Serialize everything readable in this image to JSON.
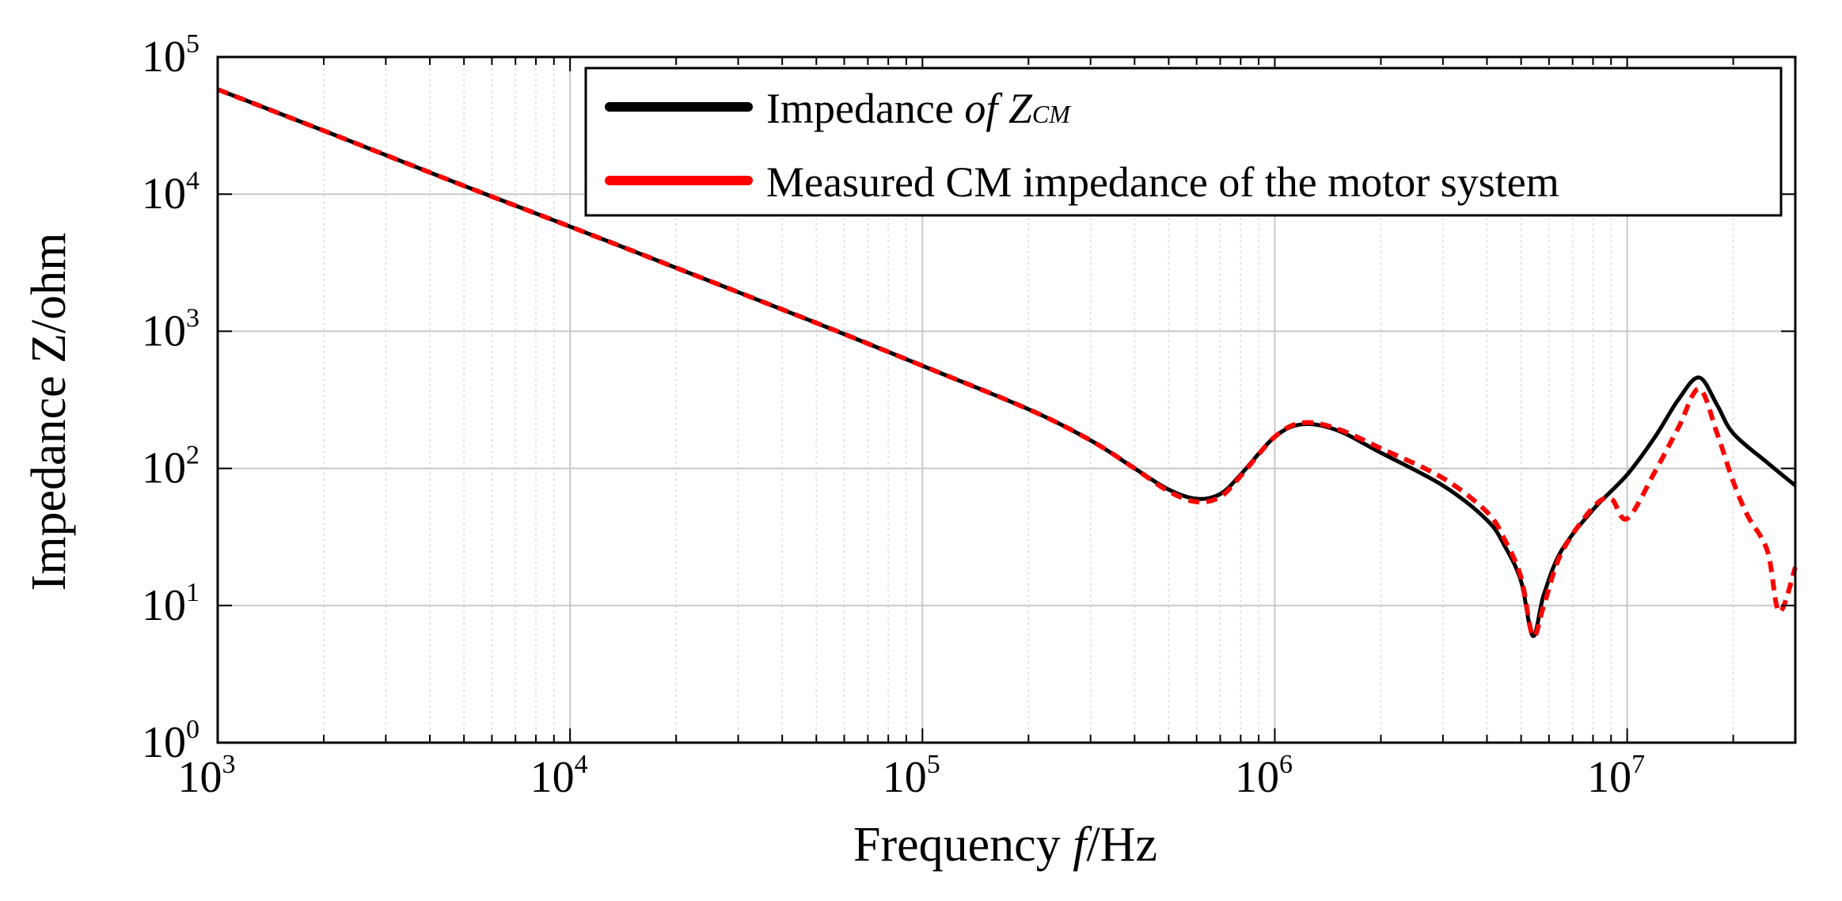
{
  "chart_data": {
    "type": "line",
    "title": "",
    "xlabel": "Frequency f/Hz",
    "xlabel_prefix": "Frequency ",
    "xlabel_var": "f",
    "xlabel_unit": "/Hz",
    "ylabel": "Impedance Z/ohm",
    "x_scale": "log",
    "y_scale": "log",
    "xlim": [
      1000,
      30000000
    ],
    "ylim": [
      1,
      100000
    ],
    "x_ticks": [
      {
        "base": "10",
        "exp": "3",
        "value": 1000
      },
      {
        "base": "10",
        "exp": "4",
        "value": 10000
      },
      {
        "base": "10",
        "exp": "5",
        "value": 100000
      },
      {
        "base": "10",
        "exp": "6",
        "value": 1000000
      },
      {
        "base": "10",
        "exp": "7",
        "value": 10000000
      }
    ],
    "y_ticks": [
      {
        "base": "10",
        "exp": "0",
        "value": 1
      },
      {
        "base": "10",
        "exp": "1",
        "value": 10
      },
      {
        "base": "10",
        "exp": "2",
        "value": 100
      },
      {
        "base": "10",
        "exp": "3",
        "value": 1000
      },
      {
        "base": "10",
        "exp": "4",
        "value": 10000
      },
      {
        "base": "10",
        "exp": "5",
        "value": 100000
      }
    ],
    "grid": true,
    "legend_position": "top-right",
    "series": [
      {
        "name": "Impedance of ZCM",
        "legend_main": "Impedance ",
        "legend_of": "of ",
        "legend_z": "Z",
        "legend_sub": "CM",
        "color": "#000000",
        "style": "solid",
        "x": [
          1000,
          2000,
          5000,
          10000,
          20000,
          50000,
          100000,
          200000,
          300000,
          400000,
          500000,
          600000,
          700000,
          800000,
          1000000,
          1200000,
          1500000,
          2000000,
          3000000,
          4000000,
          4500000,
          5000000,
          5400000,
          5800000,
          6500000,
          8000000,
          10000000,
          12000000,
          14000000,
          16000000,
          18000000,
          20000000,
          25000000,
          30000000
        ],
        "y": [
          58000,
          29000,
          11500,
          5800,
          2900,
          1150,
          560,
          270,
          160,
          100,
          70,
          60,
          65,
          90,
          170,
          210,
          190,
          130,
          75,
          42,
          27,
          15,
          6,
          12,
          25,
          50,
          90,
          170,
          320,
          460,
          290,
          180,
          110,
          75
        ]
      },
      {
        "name": "Measured CM impedance of the motor system",
        "legend_text": "Measured CM impedance of the motor system",
        "color": "#ff0000",
        "style": "dashed",
        "x": [
          1000,
          2000,
          5000,
          10000,
          20000,
          50000,
          100000,
          200000,
          300000,
          400000,
          500000,
          600000,
          700000,
          800000,
          1000000,
          1200000,
          1500000,
          2000000,
          3000000,
          4000000,
          4500000,
          5000000,
          5400000,
          5800000,
          6500000,
          8000000,
          9000000,
          10000000,
          12000000,
          14000000,
          16000000,
          18000000,
          20000000,
          22000000,
          25000000,
          27000000,
          30000000
        ],
        "y": [
          58000,
          29000,
          11500,
          5800,
          2900,
          1150,
          560,
          270,
          160,
          100,
          68,
          57,
          62,
          88,
          170,
          215,
          195,
          140,
          85,
          48,
          30,
          16,
          6,
          10,
          24,
          52,
          60,
          43,
          95,
          200,
          380,
          180,
          80,
          45,
          25,
          9,
          19
        ]
      }
    ]
  }
}
